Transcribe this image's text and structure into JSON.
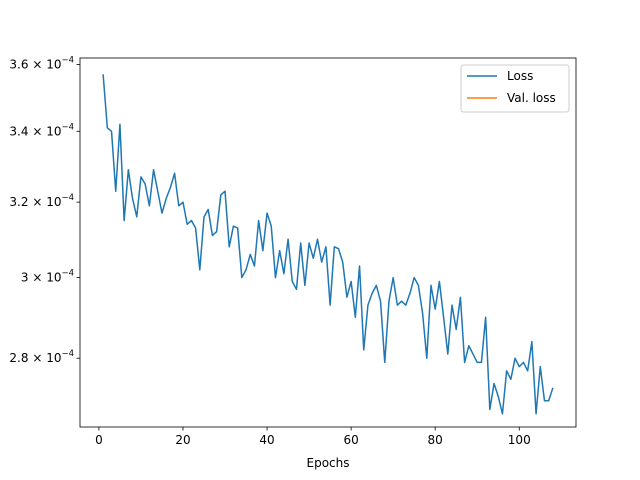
{
  "chart_data": {
    "type": "line",
    "title": "",
    "xlabel": "Epochs",
    "ylabel": "",
    "yscale": "log",
    "xlim": [
      -4.5,
      113.5
    ],
    "ylim": [
      0.000264,
      0.000362
    ],
    "x_ticks": [
      0,
      20,
      40,
      60,
      80,
      100
    ],
    "x_tick_labels": [
      "0",
      "20",
      "40",
      "60",
      "80",
      "100"
    ],
    "y_ticks": [
      0.00028,
      0.0003,
      0.00032,
      0.00034,
      0.00036
    ],
    "y_tick_labels": [
      {
        "mantissa": "2.8",
        "base": "10",
        "exp": "−4"
      },
      {
        "mantissa": "3",
        "base": "10",
        "exp": "−4"
      },
      {
        "mantissa": "3.2",
        "base": "10",
        "exp": "−4"
      },
      {
        "mantissa": "3.4",
        "base": "10",
        "exp": "−4"
      },
      {
        "mantissa": "3.6",
        "base": "10",
        "exp": "−4"
      }
    ],
    "grid": false,
    "legend_position": "top-right",
    "series": [
      {
        "name": "Loss",
        "color": "#1f77b4",
        "x": [
          1,
          2,
          3,
          4,
          5,
          6,
          7,
          8,
          9,
          10,
          11,
          12,
          13,
          14,
          15,
          16,
          17,
          18,
          19,
          20,
          21,
          22,
          23,
          24,
          25,
          26,
          27,
          28,
          29,
          30,
          31,
          32,
          33,
          34,
          35,
          36,
          37,
          38,
          39,
          40,
          41,
          42,
          43,
          44,
          45,
          46,
          47,
          48,
          49,
          50,
          51,
          52,
          53,
          54,
          55,
          56,
          57,
          58,
          59,
          60,
          61,
          62,
          63,
          64,
          65,
          66,
          67,
          68,
          69,
          70,
          71,
          72,
          73,
          74,
          75,
          76,
          77,
          78,
          79,
          80,
          81,
          82,
          83,
          84,
          85,
          86,
          87,
          88,
          89,
          90,
          91,
          92,
          93,
          94,
          95,
          96,
          97,
          98,
          99,
          100,
          101,
          102,
          103,
          104,
          105,
          106,
          107,
          108
        ],
        "values": [
          0.000357,
          0.000341,
          0.00034,
          0.000323,
          0.000342,
          0.000315,
          0.000329,
          0.000321,
          0.000316,
          0.000327,
          0.000325,
          0.000319,
          0.000329,
          0.000323,
          0.000317,
          0.000321,
          0.000324,
          0.000328,
          0.000319,
          0.00032,
          0.000314,
          0.000315,
          0.000313,
          0.000302,
          0.000316,
          0.000318,
          0.000311,
          0.000312,
          0.000322,
          0.000323,
          0.000308,
          0.0003135,
          0.000313,
          0.0003,
          0.000302,
          0.000306,
          0.000303,
          0.000315,
          0.000307,
          0.000317,
          0.0003135,
          0.0003,
          0.000307,
          0.000301,
          0.00031,
          0.000299,
          0.000297,
          0.000309,
          0.000298,
          0.000309,
          0.000305,
          0.00031,
          0.000304,
          0.000308,
          0.000293,
          0.000308,
          0.0003075,
          0.000304,
          0.000295,
          0.000299,
          0.00029,
          0.000303,
          0.000282,
          0.000293,
          0.000296,
          0.000298,
          0.000294,
          0.000279,
          0.000294,
          0.0003,
          0.000293,
          0.000294,
          0.000293,
          0.000296,
          0.0003,
          0.000298,
          0.000291,
          0.00028,
          0.000298,
          0.000292,
          0.000299,
          0.00029,
          0.000281,
          0.000293,
          0.000287,
          0.000295,
          0.000279,
          0.000283,
          0.000281,
          0.000279,
          0.000279,
          0.00029,
          0.000268,
          0.000274,
          0.000271,
          0.000267,
          0.000277,
          0.000275,
          0.00028,
          0.000278,
          0.000279,
          0.000277,
          0.000284,
          0.000267,
          0.000278,
          0.00027,
          0.00027,
          0.000273
        ]
      },
      {
        "name": "Val. loss",
        "color": "#ff7f0e",
        "x": [],
        "values": []
      }
    ]
  }
}
